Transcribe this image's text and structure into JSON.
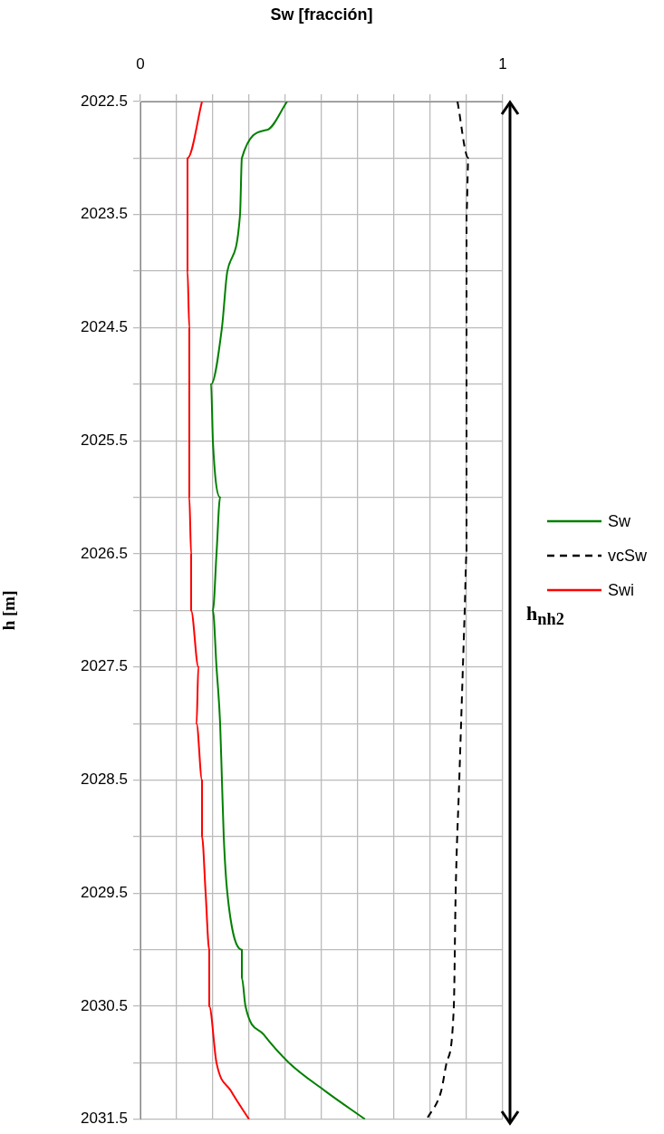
{
  "chart_data": {
    "type": "line",
    "xlabel": "Sw [fracción]",
    "ylabel": "h [m]",
    "annotations": [
      "h$_{nh2}$"
    ],
    "xlim": [
      0,
      1
    ],
    "xticks": [
      0,
      {
        "value": 0.1,
        "label": null
      },
      {
        "value": 0.2,
        "label": null
      },
      {
        "value": 0.3,
        "label": null
      },
      {
        "value": 0.4,
        "label": null
      },
      {
        "value": 0.5,
        "label": null
      },
      {
        "value": 0.6,
        "label": null
      },
      {
        "value": 0.7,
        "label": null
      },
      {
        "value": 0.8,
        "label": null
      },
      {
        "value": 0.9,
        "label": null
      },
      1
    ],
    "ylim": [
      2031.5,
      2022.5
    ],
    "yticks": [
      2022.5,
      {
        "value": 2023,
        "label": null
      },
      2023.5,
      {
        "value": 2024,
        "label": null
      },
      2024.5,
      {
        "value": 2025,
        "label": null
      },
      2025.5,
      {
        "value": 2026,
        "label": null
      },
      2026.5,
      {
        "value": 2027,
        "label": null
      },
      2027.5,
      {
        "value": 2028,
        "label": null
      },
      2028.5,
      {
        "value": 2029,
        "label": null
      },
      2029.5,
      {
        "value": 2030,
        "label": null
      },
      2030.5,
      {
        "value": 2031,
        "label": null
      },
      2031.5
    ],
    "grid": true,
    "legend": "right",
    "marker": "none",
    "series": [
      {
        "name": "Sw",
        "color": "#008000",
        "line_style": "solid",
        "x": [
          0.405,
          0.35,
          0.28,
          0.275,
          0.24,
          0.225,
          0.195,
          0.2,
          0.22,
          0.21,
          0.2,
          0.21,
          0.22,
          0.225,
          0.23,
          0.24,
          0.28,
          0.28,
          0.29,
          0.34,
          0.41,
          0.51,
          0.62
        ],
        "values": [
          2022.5,
          2022.75,
          2023,
          2023.5,
          2024,
          2024.5,
          2025,
          2025.5,
          2026,
          2026.5,
          2027,
          2027.5,
          2028,
          2028.5,
          2029,
          2029.5,
          2030,
          2030.25,
          2030.5,
          2030.75,
          2031,
          2031.25,
          2031.5
        ]
      },
      {
        "name": "vcSw",
        "color": "#000000",
        "line_style": "dashed",
        "x": [
          0.875,
          0.905,
          0.9,
          0.9,
          0.9,
          0.895,
          0.89,
          0.885,
          0.88,
          0.87,
          0.865,
          0.845,
          0.83,
          0.79
        ],
        "values": [
          2022.5,
          2023,
          2023.5,
          2025,
          2026.5,
          2027,
          2027.5,
          2028,
          2028.5,
          2029.5,
          2030.5,
          2031,
          2031.25,
          2031.5
        ]
      },
      {
        "name": "Swi",
        "color": "#ff0000",
        "line_style": "solid",
        "x": [
          0.17,
          0.13,
          0.13,
          0.13,
          0.135,
          0.135,
          0.135,
          0.135,
          0.14,
          0.14,
          0.16,
          0.155,
          0.17,
          0.17,
          0.18,
          0.19,
          0.19,
          0.21,
          0.25,
          0.3
        ],
        "values": [
          2022.5,
          2023,
          2023.5,
          2024,
          2024.5,
          2025,
          2025.5,
          2026,
          2026.5,
          2027,
          2027.5,
          2028,
          2028.5,
          2029,
          2029.5,
          2030,
          2030.5,
          2031,
          2031.25,
          2031.5
        ]
      }
    ]
  }
}
